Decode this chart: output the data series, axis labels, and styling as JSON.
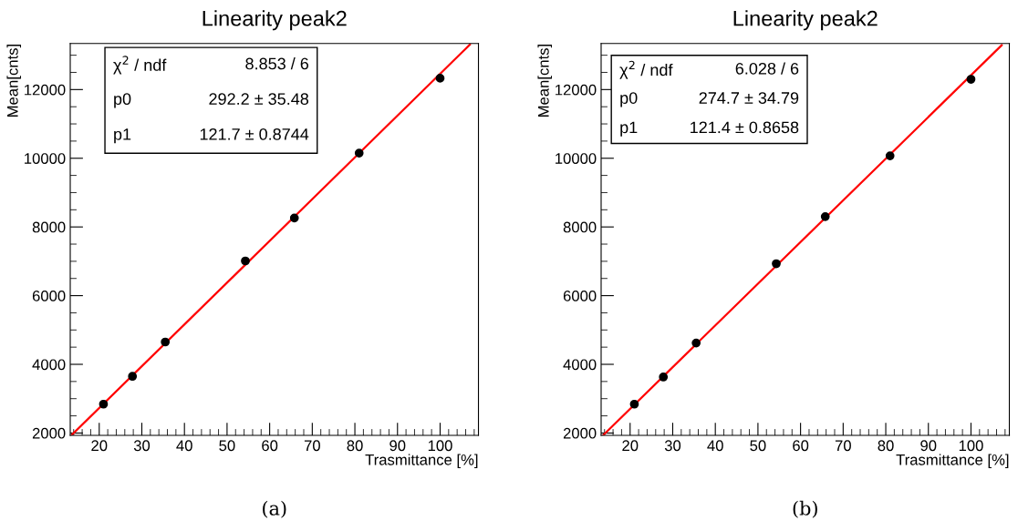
{
  "chart_data": [
    {
      "type": "scatter",
      "title": "Linearity peak2",
      "xlabel": "Trasmittance [%]",
      "ylabel": "Mean[cnts]",
      "x": [
        21,
        27.8,
        35.5,
        54.3,
        65.8,
        81,
        100
      ],
      "series": [
        {
          "color": "#000000",
          "values": [
            2840,
            3650,
            4650,
            7010,
            8260,
            10150,
            12330
          ]
        },
        {
          "type": "line",
          "color": "#ff0000",
          "x": [
            13.6,
            107
          ],
          "values": [
            1950,
            13310
          ],
          "marker": "none"
        }
      ],
      "xlim": [
        13.2,
        109
      ],
      "ylim": [
        1930,
        13340
      ],
      "xticks": [
        20,
        30,
        40,
        50,
        60,
        70,
        80,
        90,
        100
      ],
      "yticks": [
        2000,
        4000,
        6000,
        8000,
        10000,
        12000
      ],
      "marker": "circle",
      "grid": false,
      "legend": false,
      "annotations": [
        "χ$^{2}$ / ndf",
        "8.853 / 6",
        "p0",
        "292.2 ± 35.48",
        "p1",
        "121.7 ± 0.8744",
        "(a)"
      ]
    },
    {
      "type": "scatter",
      "title": "Linearity peak2",
      "xlabel": "Trasmittance [%]",
      "ylabel": "Mean[cnts]",
      "x": [
        21,
        27.8,
        35.5,
        54.3,
        65.8,
        81,
        100
      ],
      "series": [
        {
          "color": "#000000",
          "values": [
            2840,
            3630,
            4620,
            6930,
            8300,
            10070,
            12300
          ]
        },
        {
          "type": "line",
          "color": "#ff0000",
          "x": [
            13.7,
            107.2
          ],
          "values": [
            1940,
            13290
          ],
          "marker": "none"
        }
      ],
      "xlim": [
        13.2,
        109
      ],
      "ylim": [
        1930,
        13340
      ],
      "xticks": [
        20,
        30,
        40,
        50,
        60,
        70,
        80,
        90,
        100
      ],
      "yticks": [
        2000,
        4000,
        6000,
        8000,
        10000,
        12000
      ],
      "marker": "circle",
      "grid": false,
      "legend": false,
      "annotations": [
        "χ$^{2}$ / ndf",
        "6.028 / 6",
        "p0",
        "274.7 ± 34.79",
        "p1",
        "121.4 ± 0.8658",
        "(b)"
      ]
    }
  ]
}
